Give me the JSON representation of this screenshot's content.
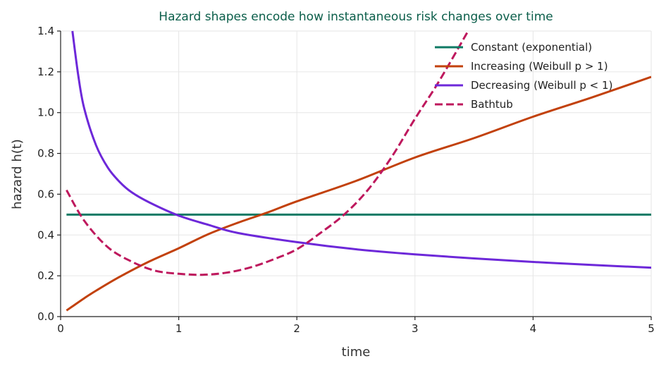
{
  "chart_data": {
    "type": "line",
    "title": "Hazard shapes encode how instantaneous risk changes over time",
    "title_color": "#0b5e4a",
    "xlabel": "time",
    "ylabel": "hazard  h(t)",
    "xlim": [
      0,
      5
    ],
    "ylim": [
      0,
      1.4
    ],
    "x_ticks": [
      0,
      1,
      2,
      3,
      4,
      5
    ],
    "y_ticks": [
      0.0,
      0.2,
      0.4,
      0.6,
      0.8,
      1.0,
      1.2,
      1.4
    ],
    "x_tick_labels": [
      "0",
      "1",
      "2",
      "3",
      "4",
      "5"
    ],
    "y_tick_labels": [
      "0.0",
      "0.2",
      "0.4",
      "0.6",
      "0.8",
      "1.0",
      "1.2",
      "1.4"
    ],
    "grid": true,
    "legend_position": "top-right",
    "series": [
      {
        "name": "Constant (exponential)",
        "color": "#0e7a64",
        "dash": "solid",
        "x": [
          0.05,
          5.0
        ],
        "y": [
          0.5,
          0.5
        ]
      },
      {
        "name": "Increasing (Weibull p > 1)",
        "color": "#c2410c",
        "dash": "solid",
        "x": [
          0.05,
          0.1,
          0.2,
          0.3,
          0.5,
          0.75,
          1.0,
          1.25,
          1.5,
          1.75,
          2.0,
          2.5,
          3.0,
          3.5,
          4.0,
          4.5,
          5.0
        ],
        "y": [
          0.03,
          0.05,
          0.09,
          0.127,
          0.195,
          0.27,
          0.335,
          0.404,
          0.46,
          0.51,
          0.565,
          0.665,
          0.78,
          0.875,
          0.98,
          1.075,
          1.175
        ]
      },
      {
        "name": "Decreasing (Weibull p < 1)",
        "color": "#6d28d9",
        "dash": "solid",
        "x": [
          0.1,
          0.15,
          0.2,
          0.3,
          0.4,
          0.5,
          0.6,
          0.75,
          1.0,
          1.25,
          1.5,
          2.0,
          2.5,
          3.0,
          3.5,
          4.0,
          4.5,
          5.0
        ],
        "y": [
          1.4,
          1.18,
          1.02,
          0.84,
          0.73,
          0.66,
          0.61,
          0.56,
          0.495,
          0.45,
          0.41,
          0.365,
          0.33,
          0.305,
          0.285,
          0.268,
          0.253,
          0.24
        ]
      },
      {
        "name": "Bathtub",
        "color": "#be185d",
        "dash": "dashed",
        "x": [
          0.05,
          0.2,
          0.4,
          0.6,
          0.8,
          1.0,
          1.2,
          1.4,
          1.6,
          1.8,
          2.0,
          2.2,
          2.4,
          2.6,
          2.8,
          3.0,
          3.2,
          3.45
        ],
        "y": [
          0.62,
          0.47,
          0.34,
          0.27,
          0.225,
          0.21,
          0.205,
          0.215,
          0.24,
          0.28,
          0.33,
          0.41,
          0.5,
          0.62,
          0.78,
          0.97,
          1.15,
          1.4
        ]
      }
    ]
  }
}
